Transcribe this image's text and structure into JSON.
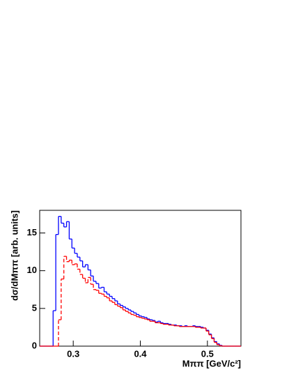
{
  "chart_data": {
    "type": "histogram",
    "x_label": "Mππ [GeV/c²]",
    "y_label": "dσ/dMππ [arb. units]",
    "bins": [
      0.25,
      0.254,
      0.258,
      0.262,
      0.266,
      0.27,
      0.274,
      0.278,
      0.282,
      0.286,
      0.29,
      0.294,
      0.298,
      0.302,
      0.306,
      0.31,
      0.314,
      0.318,
      0.322,
      0.326,
      0.33,
      0.334,
      0.338,
      0.342,
      0.346,
      0.35,
      0.354,
      0.358,
      0.362,
      0.366,
      0.37,
      0.374,
      0.378,
      0.382,
      0.386,
      0.39,
      0.394,
      0.398,
      0.402,
      0.406,
      0.41,
      0.414,
      0.418,
      0.422,
      0.426,
      0.43,
      0.434,
      0.438,
      0.442,
      0.446,
      0.45,
      0.454,
      0.458,
      0.462,
      0.466,
      0.47,
      0.474,
      0.478,
      0.482,
      0.486,
      0.49,
      0.494,
      0.498,
      0.502,
      0.506,
      0.51,
      0.514,
      0.518,
      0.522,
      0.526,
      0.53,
      0.534,
      0.538,
      0.542,
      0.546,
      0.55
    ],
    "series": [
      {
        "color": "#0000ff",
        "dash": false,
        "values": [
          0,
          0,
          0,
          0,
          0,
          4.7,
          14.8,
          17.2,
          16.3,
          15.8,
          16.5,
          14.2,
          13.0,
          12.3,
          11.8,
          11.3,
          10.5,
          10.8,
          10.1,
          9.3,
          8.6,
          8.3,
          7.7,
          7.8,
          7.2,
          6.9,
          6.6,
          6.3,
          6.0,
          5.6,
          5.4,
          5.2,
          5.0,
          4.8,
          4.6,
          4.4,
          4.2,
          4.0,
          3.9,
          3.8,
          3.6,
          3.5,
          3.4,
          3.2,
          3.3,
          3.1,
          3.0,
          3.0,
          2.9,
          2.8,
          2.8,
          2.7,
          2.7,
          2.6,
          2.7,
          2.6,
          2.6,
          2.7,
          2.6,
          2.6,
          2.5,
          2.4,
          2.1,
          1.6,
          1.1,
          0.6,
          0.3,
          0.1,
          0,
          0,
          0,
          0,
          0,
          0,
          0
        ]
      },
      {
        "color": "#ff0000",
        "dash": true,
        "values": [
          0,
          0,
          0,
          0,
          0,
          0,
          0,
          3.5,
          8.9,
          11.9,
          11.2,
          11.4,
          10.8,
          10.9,
          10.2,
          9.5,
          9.0,
          8.4,
          9.1,
          8.2,
          7.5,
          7.4,
          7.0,
          6.9,
          6.6,
          6.4,
          6.0,
          5.8,
          5.5,
          5.3,
          5.1,
          4.8,
          4.6,
          4.4,
          4.2,
          4.1,
          3.9,
          3.8,
          3.7,
          3.6,
          3.5,
          3.3,
          3.3,
          3.1,
          3.1,
          3.0,
          2.9,
          2.9,
          2.8,
          2.8,
          2.7,
          2.7,
          2.6,
          2.6,
          2.6,
          2.6,
          2.6,
          2.6,
          2.5,
          2.5,
          2.4,
          2.4,
          2.0,
          1.5,
          1.0,
          0.5,
          0.2,
          0.05,
          0,
          0,
          0,
          0,
          0,
          0,
          0
        ]
      }
    ],
    "xlim": [
      0.25,
      0.55
    ],
    "xticks": [
      0.3,
      0.4,
      0.5
    ],
    "ylim": [
      0,
      18
    ],
    "yticks": [
      0,
      5,
      10,
      15
    ]
  }
}
